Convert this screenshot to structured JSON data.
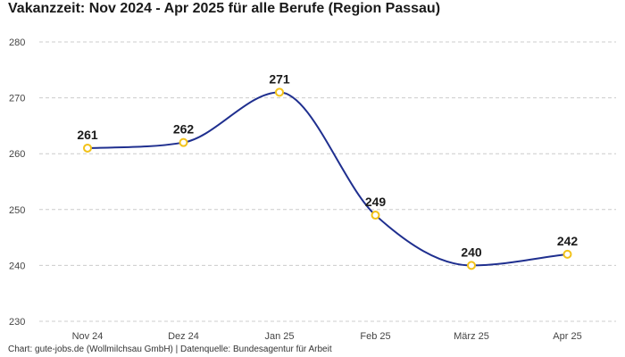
{
  "chart_data": {
    "type": "line",
    "title": "Vakanzzeit: Nov 2024 - Apr 2025 für alle Berufe (Region Passau)",
    "categories": [
      "Nov 24",
      "Dez 24",
      "Jan 25",
      "Feb 25",
      "März 25",
      "Apr 25"
    ],
    "values": [
      261,
      262,
      271,
      249,
      240,
      242
    ],
    "ylim": [
      230,
      280
    ],
    "yticks": [
      230,
      240,
      250,
      260,
      270,
      280
    ],
    "grid": true,
    "xlabel": "",
    "ylabel": "",
    "line_color": "#1f2f8f",
    "marker_color": "#f2c21a"
  },
  "footer": "Chart: gute-jobs.de (Wollmilchsau GmbH) | Datenquelle: Bundesagentur für Arbeit"
}
